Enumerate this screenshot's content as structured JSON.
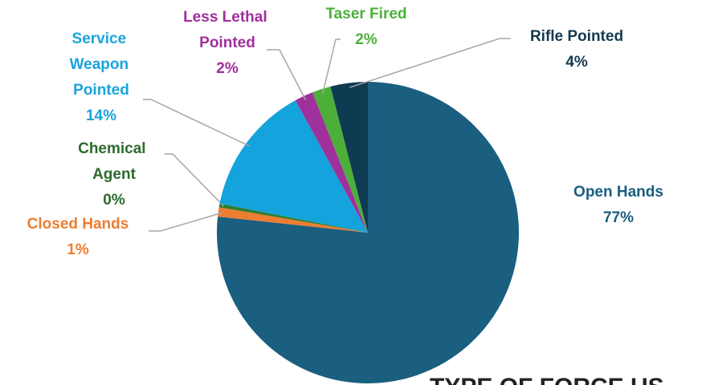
{
  "chart_data": {
    "type": "pie",
    "title": "TYPE OF FORCE US",
    "categories": [
      "Open Hands",
      "Closed Hands",
      "Chemical Agent",
      "Service Weapon Pointed",
      "Less Lethal Pointed",
      "Taser Fired",
      "Rifle Pointed"
    ],
    "values": [
      77,
      1,
      0.4,
      14,
      2,
      2,
      4
    ],
    "value_labels": [
      "77%",
      "1%",
      "0%",
      "14%",
      "2%",
      "2%",
      "4%"
    ],
    "colors": [
      "#1a5e80",
      "#ed7d31",
      "#2e7d32",
      "#14a3dc",
      "#a0309b",
      "#4caf3a",
      "#0f3b52"
    ]
  }
}
